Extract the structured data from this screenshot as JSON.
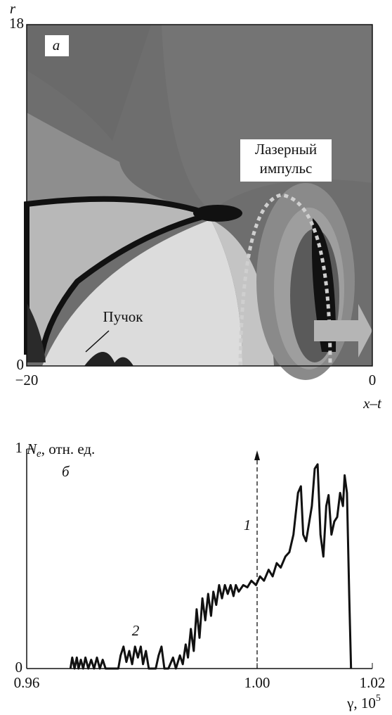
{
  "chart_data": [
    {
      "type": "contour",
      "panel_label": "a",
      "ylabel": "r",
      "xlabel": "x–t",
      "xlim": [
        -20,
        0
      ],
      "xticks": [
        {
          "value": -20,
          "label": "−20"
        },
        0
      ],
      "ylim": [
        0,
        18
      ],
      "yticks": [
        0,
        18
      ],
      "annotations": {
        "laser": [
          "Лазерный",
          "импульс"
        ],
        "beam": "Пучок"
      }
    },
    {
      "type": "line",
      "panel_label": "б",
      "ylabel": {
        "symbol": "N",
        "subscript": "e",
        "unit": ", отн. ед."
      },
      "xlabel": {
        "text": "γ, 10",
        "superscript": "5"
      },
      "xlim": [
        0.96,
        1.02
      ],
      "xticks": [
        {
          "value": 0.96,
          "label": "0.96"
        },
        {
          "value": 1.0,
          "label": "1.00"
        },
        {
          "value": 1.02,
          "label": "1.02"
        }
      ],
      "ylim": [
        0,
        1
      ],
      "yticks": [
        0,
        1
      ],
      "arrow": {
        "x": 1.0,
        "label": "1"
      },
      "curve_label": "2",
      "x": [
        0.9676,
        0.9679,
        0.9683,
        0.9687,
        0.969,
        0.9694,
        0.9698,
        0.9702,
        0.9707,
        0.9712,
        0.9717,
        0.9722,
        0.9727,
        0.9732,
        0.9737,
        0.9759,
        0.9763,
        0.9768,
        0.9773,
        0.9778,
        0.9783,
        0.9788,
        0.9793,
        0.9798,
        0.9802,
        0.9807,
        0.9812,
        0.9824,
        0.9829,
        0.9834,
        0.9839,
        0.9846,
        0.9854,
        0.9859,
        0.9866,
        0.9871,
        0.9876,
        0.988,
        0.9885,
        0.989,
        0.9895,
        0.99,
        0.9905,
        0.991,
        0.9915,
        0.992,
        0.9924,
        0.9929,
        0.9934,
        0.9939,
        0.9944,
        0.9949,
        0.9954,
        0.9959,
        0.9963,
        0.9968,
        0.9976,
        0.9983,
        0.999,
        0.9998,
        1.0005,
        1.0012,
        1.002,
        1.0027,
        1.0034,
        1.0041,
        1.0049,
        1.0056,
        1.0063,
        1.0071,
        1.0076,
        1.008,
        1.0085,
        1.009,
        1.0095,
        1.01,
        1.0105,
        1.011,
        1.0115,
        1.012,
        1.0124,
        1.0129,
        1.0134,
        1.0139,
        1.0144,
        1.0149,
        1.0152,
        1.0156,
        1.016,
        1.0163
      ],
      "series": [
        {
          "color": "#111111",
          "values": [
            0,
            0.05,
            0,
            0.05,
            0,
            0.04,
            0,
            0.05,
            0,
            0.04,
            0,
            0.05,
            0,
            0.04,
            0,
            0,
            0.06,
            0.1,
            0.03,
            0.08,
            0.02,
            0.1,
            0.05,
            0.1,
            0.02,
            0.08,
            0,
            0,
            0.06,
            0.1,
            0,
            0,
            0.05,
            0,
            0.06,
            0.02,
            0.11,
            0.05,
            0.18,
            0.08,
            0.27,
            0.14,
            0.32,
            0.22,
            0.34,
            0.24,
            0.35,
            0.29,
            0.38,
            0.32,
            0.38,
            0.34,
            0.38,
            0.33,
            0.38,
            0.35,
            0.38,
            0.37,
            0.4,
            0.38,
            0.42,
            0.4,
            0.45,
            0.42,
            0.48,
            0.46,
            0.51,
            0.53,
            0.61,
            0.8,
            0.83,
            0.61,
            0.58,
            0.66,
            0.74,
            0.91,
            0.93,
            0.61,
            0.51,
            0.74,
            0.79,
            0.61,
            0.67,
            0.69,
            0.8,
            0.74,
            0.88,
            0.8,
            0.32,
            0
          ]
        }
      ]
    }
  ]
}
